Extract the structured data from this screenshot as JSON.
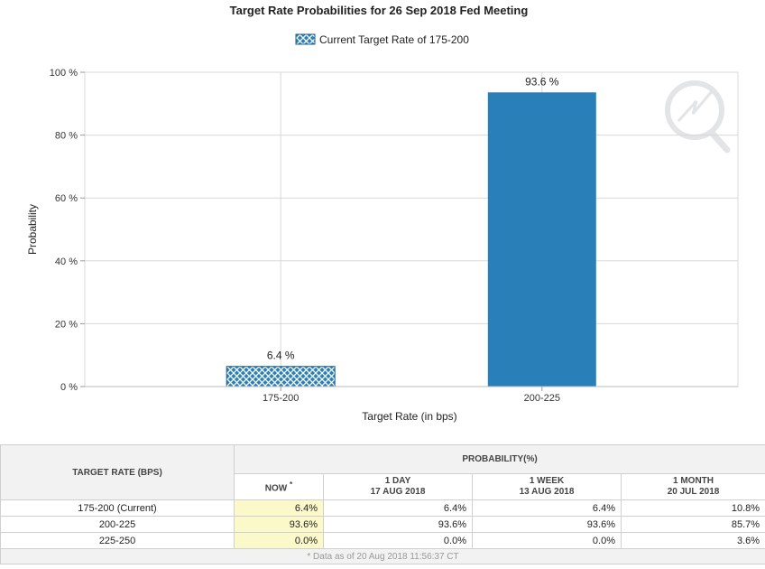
{
  "chart_data": {
    "type": "bar",
    "title": "Target Rate Probabilities for 26 Sep 2018 Fed Meeting",
    "legend": {
      "label": "Current Target Rate of 175-200",
      "placement": "top-center"
    },
    "categories": [
      "175-200",
      "200-225"
    ],
    "values": [
      6.4,
      93.6
    ],
    "value_labels": [
      "6.4 %",
      "93.6 %"
    ],
    "current_category": "175-200",
    "xlabel": "Target Rate (in bps)",
    "ylabel": "Probability",
    "ylim": [
      0,
      100
    ],
    "yticks": [
      0,
      20,
      40,
      60,
      80,
      100
    ],
    "ytick_labels": [
      "0 %",
      "20 %",
      "40 %",
      "60 %",
      "80 %",
      "100 %"
    ],
    "grid": true,
    "colors": {
      "bar": "#2980b9",
      "current_bar": "#2980b9",
      "hatch": "#ffffff"
    }
  },
  "table": {
    "rate_header": "TARGET RATE (BPS)",
    "prob_header": "PROBABILITY(%)",
    "columns": [
      {
        "line1": "NOW",
        "line2": "",
        "mark": "*"
      },
      {
        "line1": "1 DAY",
        "line2": "17 AUG 2018",
        "mark": ""
      },
      {
        "line1": "1 WEEK",
        "line2": "13 AUG 2018",
        "mark": ""
      },
      {
        "line1": "1 MONTH",
        "line2": "20 JUL 2018",
        "mark": ""
      }
    ],
    "rows": [
      {
        "rate": "175-200 (Current)",
        "values": [
          "6.4%",
          "6.4%",
          "6.4%",
          "10.8%"
        ]
      },
      {
        "rate": "200-225",
        "values": [
          "93.6%",
          "93.6%",
          "93.6%",
          "85.7%"
        ]
      },
      {
        "rate": "225-250",
        "values": [
          "0.0%",
          "0.0%",
          "0.0%",
          "3.6%"
        ]
      }
    ],
    "footnote": "* Data as of 20 Aug 2018 11:56:37 CT"
  }
}
